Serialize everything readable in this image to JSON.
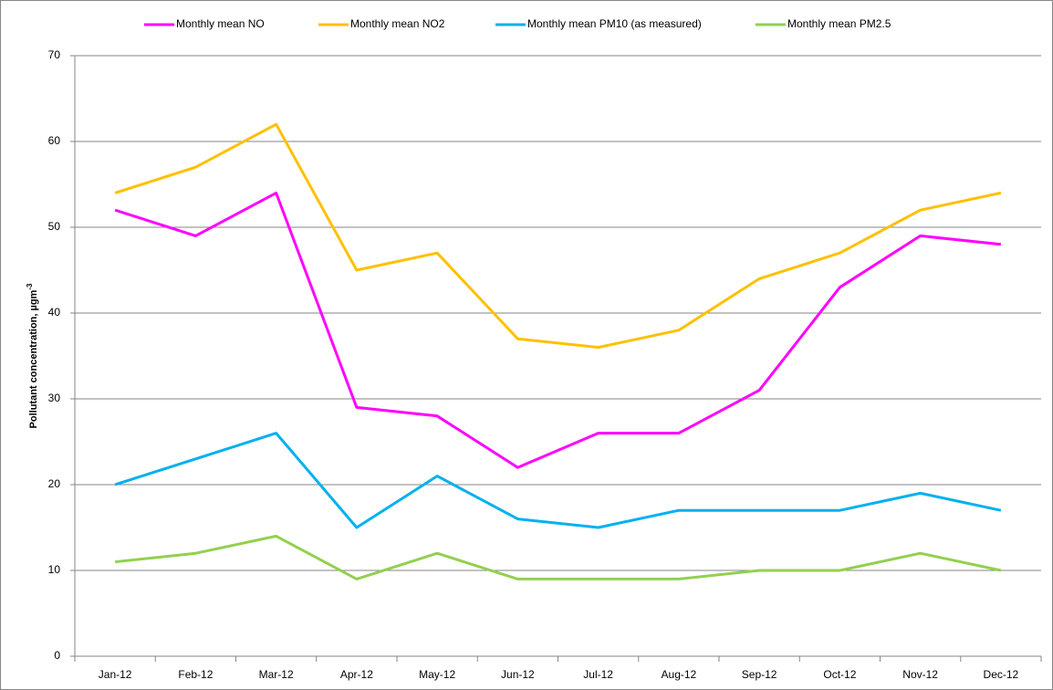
{
  "chart_data": {
    "type": "line",
    "y_label": "Pollutant concentration, µgm",
    "y_label_superscript": "-3",
    "categories": [
      "Jan-12",
      "Feb-12",
      "Mar-12",
      "Apr-12",
      "May-12",
      "Jun-12",
      "Jul-12",
      "Aug-12",
      "Sep-12",
      "Oct-12",
      "Nov-12",
      "Dec-12"
    ],
    "series": [
      {
        "name": "Monthly mean NO",
        "color": "#ff00ff",
        "values": [
          52,
          49,
          54,
          29,
          28,
          22,
          26,
          26,
          31,
          43,
          49,
          48
        ]
      },
      {
        "name": "Monthly mean NO2",
        "color": "#ffc000",
        "values": [
          54,
          57,
          62,
          45,
          47,
          37,
          36,
          38,
          44,
          47,
          52,
          54
        ]
      },
      {
        "name": "Monthly mean PM10 (as measured)",
        "color": "#00b0f0",
        "values": [
          20,
          23,
          26,
          15,
          21,
          16,
          15,
          17,
          17,
          17,
          19,
          17
        ]
      },
      {
        "name": "Monthly mean PM2.5",
        "color": "#92d050",
        "values": [
          11,
          12,
          14,
          9,
          12,
          9,
          9,
          9,
          10,
          10,
          12,
          10
        ]
      }
    ],
    "ylim": [
      0,
      70
    ],
    "yticks": [
      0,
      10,
      20,
      30,
      40,
      50,
      60,
      70
    ],
    "grid": true,
    "legend": "top"
  }
}
